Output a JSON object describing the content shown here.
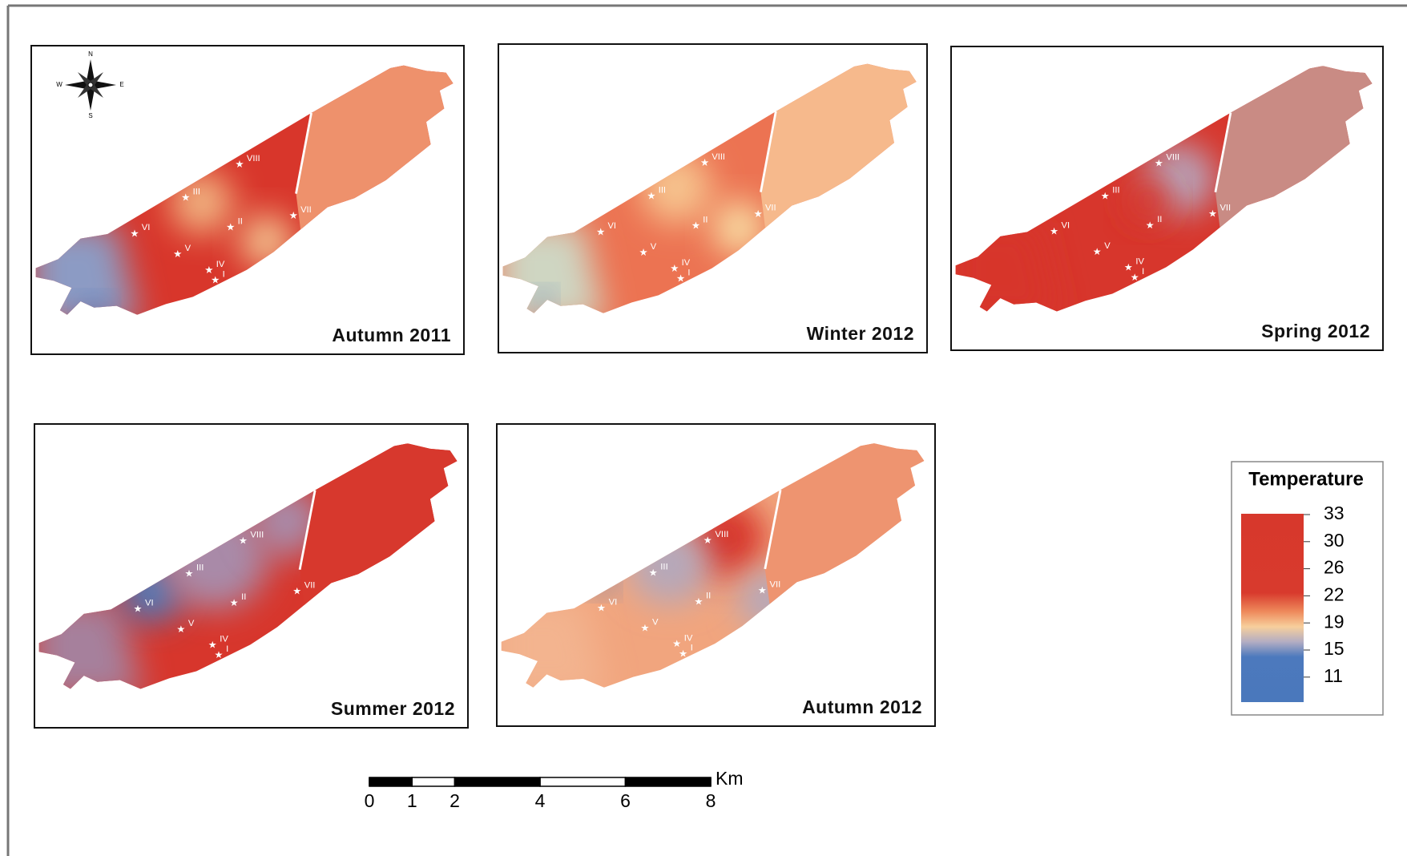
{
  "compass": {
    "n": "N",
    "e": "E",
    "s": "S",
    "w": "W"
  },
  "stations": [
    "I",
    "II",
    "III",
    "IV",
    "V",
    "VI",
    "VII",
    "VIII"
  ],
  "panels": [
    {
      "title": "Autumn 2011"
    },
    {
      "title": "Winter 2012"
    },
    {
      "title": "Spring 2012"
    },
    {
      "title": "Summer 2012"
    },
    {
      "title": "Autumn 2012"
    }
  ],
  "legend": {
    "title": "Temperature",
    "labels": [
      33,
      30,
      26,
      22,
      19,
      15,
      11
    ]
  },
  "scale_bar": {
    "ticks": [
      0,
      1,
      2,
      4,
      6,
      8
    ],
    "unit": "Km"
  }
}
